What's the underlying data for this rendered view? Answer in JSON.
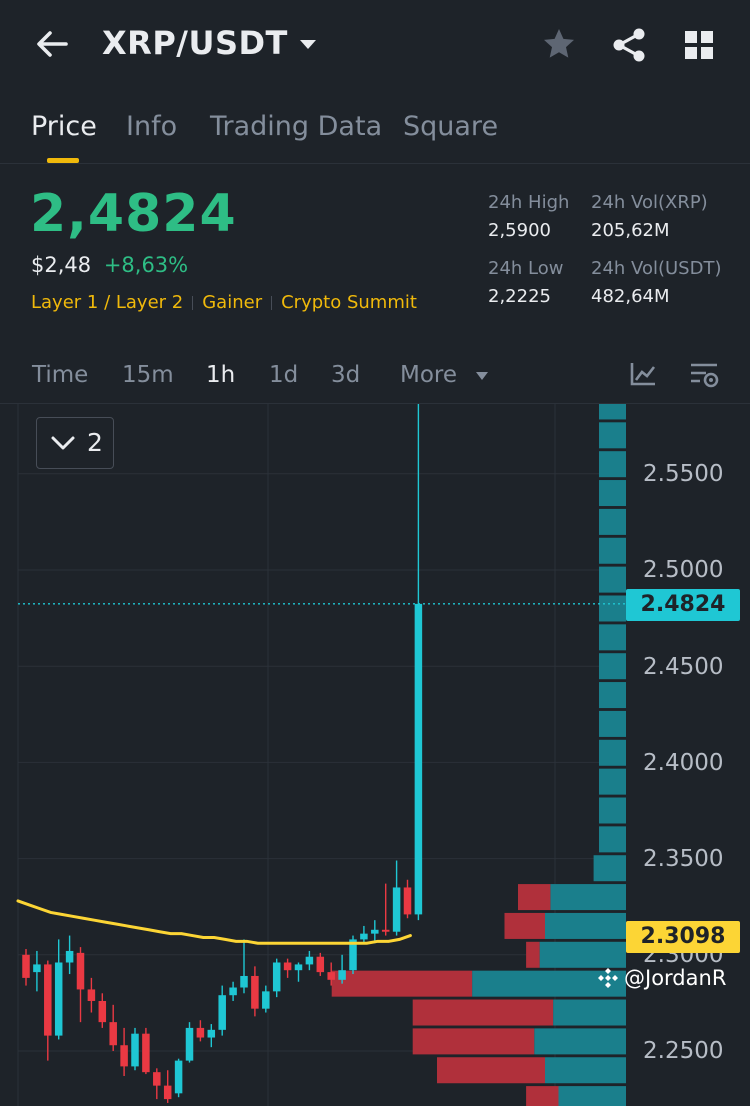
{
  "header": {
    "pair": "XRP/USDT"
  },
  "tabs": [
    {
      "label": "Price",
      "active": true
    },
    {
      "label": "Info"
    },
    {
      "label": "Trading Data"
    },
    {
      "label": "Square"
    }
  ],
  "ticker": {
    "last_price": "2,4824",
    "usd_price": "$2,48",
    "change_pct": "+8,63%",
    "tags": [
      "Layer 1 / Layer 2",
      "Gainer",
      "Crypto Summit"
    ],
    "stats": {
      "high_label": "24h High",
      "high_value": "2,5900",
      "vol_base_label": "24h Vol(XRP)",
      "vol_base_value": "205,62M",
      "low_label": "24h Low",
      "low_value": "2,2225",
      "vol_quote_label": "24h Vol(USDT)",
      "vol_quote_value": "482,64M"
    }
  },
  "intervals": [
    {
      "label": "Time"
    },
    {
      "label": "15m"
    },
    {
      "label": "1h",
      "active": true
    },
    {
      "label": "1d"
    },
    {
      "label": "3d"
    },
    {
      "label": "More"
    }
  ],
  "chart": {
    "indicator_count": "2",
    "y_axis_labels": [
      "2.5500",
      "2.5000",
      "2.4500",
      "2.4000",
      "2.3500",
      "2.3000",
      "2.2500"
    ],
    "last_price_tag": "2.4824",
    "ma_price_tag": "2.3098",
    "watermark": "@JordanR"
  },
  "colors": {
    "up": "#1fc7d4",
    "down": "#ea3943",
    "ma": "#fcd535",
    "accent": "#f0b90b",
    "price_green": "#2ebd85"
  },
  "chart_data": {
    "type": "candlestick",
    "timeframe": "1h",
    "ylim": [
      2.2225,
      2.59
    ],
    "last_price": 2.4824,
    "ma_value": 2.3098,
    "candles": [
      {
        "o": 2.3,
        "h": 2.303,
        "l": 2.284,
        "c": 2.288
      },
      {
        "o": 2.291,
        "h": 2.302,
        "l": 2.281,
        "c": 2.295
      },
      {
        "o": 2.295,
        "h": 2.297,
        "l": 2.245,
        "c": 2.258
      },
      {
        "o": 2.258,
        "h": 2.308,
        "l": 2.256,
        "c": 2.296
      },
      {
        "o": 2.296,
        "h": 2.31,
        "l": 2.29,
        "c": 2.302
      },
      {
        "o": 2.301,
        "h": 2.304,
        "l": 2.265,
        "c": 2.282
      },
      {
        "o": 2.282,
        "h": 2.288,
        "l": 2.27,
        "c": 2.276
      },
      {
        "o": 2.276,
        "h": 2.28,
        "l": 2.262,
        "c": 2.265
      },
      {
        "o": 2.265,
        "h": 2.274,
        "l": 2.25,
        "c": 2.253
      },
      {
        "o": 2.253,
        "h": 2.262,
        "l": 2.237,
        "c": 2.242
      },
      {
        "o": 2.242,
        "h": 2.262,
        "l": 2.24,
        "c": 2.259
      },
      {
        "o": 2.259,
        "h": 2.262,
        "l": 2.238,
        "c": 2.239
      },
      {
        "o": 2.239,
        "h": 2.241,
        "l": 2.225,
        "c": 2.232
      },
      {
        "o": 2.232,
        "h": 2.24,
        "l": 2.223,
        "c": 2.225
      },
      {
        "o": 2.228,
        "h": 2.246,
        "l": 2.226,
        "c": 2.245
      },
      {
        "o": 2.245,
        "h": 2.265,
        "l": 2.244,
        "c": 2.262
      },
      {
        "o": 2.262,
        "h": 2.266,
        "l": 2.255,
        "c": 2.257
      },
      {
        "o": 2.257,
        "h": 2.264,
        "l": 2.252,
        "c": 2.261
      },
      {
        "o": 2.261,
        "h": 2.284,
        "l": 2.258,
        "c": 2.279
      },
      {
        "o": 2.279,
        "h": 2.286,
        "l": 2.276,
        "c": 2.283
      },
      {
        "o": 2.283,
        "h": 2.308,
        "l": 2.28,
        "c": 2.289
      },
      {
        "o": 2.289,
        "h": 2.294,
        "l": 2.268,
        "c": 2.272
      },
      {
        "o": 2.272,
        "h": 2.284,
        "l": 2.27,
        "c": 2.281
      },
      {
        "o": 2.281,
        "h": 2.298,
        "l": 2.278,
        "c": 2.296
      },
      {
        "o": 2.296,
        "h": 2.298,
        "l": 2.288,
        "c": 2.292
      },
      {
        "o": 2.292,
        "h": 2.296,
        "l": 2.286,
        "c": 2.295
      },
      {
        "o": 2.295,
        "h": 2.302,
        "l": 2.292,
        "c": 2.299
      },
      {
        "o": 2.299,
        "h": 2.301,
        "l": 2.289,
        "c": 2.291
      },
      {
        "o": 2.291,
        "h": 2.296,
        "l": 2.284,
        "c": 2.287
      },
      {
        "o": 2.287,
        "h": 2.3,
        "l": 2.285,
        "c": 2.292
      },
      {
        "o": 2.292,
        "h": 2.31,
        "l": 2.29,
        "c": 2.308
      },
      {
        "o": 2.308,
        "h": 2.315,
        "l": 2.306,
        "c": 2.311
      },
      {
        "o": 2.311,
        "h": 2.318,
        "l": 2.306,
        "c": 2.313
      },
      {
        "o": 2.313,
        "h": 2.337,
        "l": 2.31,
        "c": 2.312
      },
      {
        "o": 2.312,
        "h": 2.349,
        "l": 2.31,
        "c": 2.335
      },
      {
        "o": 2.335,
        "h": 2.339,
        "l": 2.319,
        "c": 2.321
      },
      {
        "o": 2.321,
        "h": 2.59,
        "l": 2.318,
        "c": 2.4824
      }
    ],
    "ma_line": [
      2.328,
      2.326,
      2.324,
      2.322,
      2.321,
      2.32,
      2.319,
      2.318,
      2.317,
      2.316,
      2.315,
      2.314,
      2.313,
      2.312,
      2.311,
      2.311,
      2.31,
      2.309,
      2.309,
      2.308,
      2.307,
      2.307,
      2.306,
      2.306,
      2.306,
      2.306,
      2.306,
      2.306,
      2.306,
      2.306,
      2.306,
      2.306,
      2.306,
      2.307,
      2.307,
      2.308,
      2.31
    ],
    "depth_bars": [
      {
        "price": 2.585,
        "bid": 0,
        "ask": 0.1
      },
      {
        "price": 2.57,
        "bid": 0,
        "ask": 0.1
      },
      {
        "price": 2.555,
        "bid": 0,
        "ask": 0.1
      },
      {
        "price": 2.54,
        "bid": 0,
        "ask": 0.1
      },
      {
        "price": 2.525,
        "bid": 0,
        "ask": 0.1
      },
      {
        "price": 2.51,
        "bid": 0,
        "ask": 0.1
      },
      {
        "price": 2.495,
        "bid": 0,
        "ask": 0.1
      },
      {
        "price": 2.48,
        "bid": 0,
        "ask": 0.1
      },
      {
        "price": 2.465,
        "bid": 0,
        "ask": 0.1
      },
      {
        "price": 2.45,
        "bid": 0,
        "ask": 0.1
      },
      {
        "price": 2.435,
        "bid": 0,
        "ask": 0.1
      },
      {
        "price": 2.42,
        "bid": 0,
        "ask": 0.1
      },
      {
        "price": 2.405,
        "bid": 0,
        "ask": 0.1
      },
      {
        "price": 2.39,
        "bid": 0,
        "ask": 0.1
      },
      {
        "price": 2.375,
        "bid": 0,
        "ask": 0.1
      },
      {
        "price": 2.36,
        "bid": 0,
        "ask": 0.1
      },
      {
        "price": 2.345,
        "bid": 0,
        "ask": 0.12
      },
      {
        "price": 2.33,
        "bid": 0.12,
        "ask": 0.28
      },
      {
        "price": 2.315,
        "bid": 0.15,
        "ask": 0.3
      },
      {
        "price": 2.3,
        "bid": 0.05,
        "ask": 0.32
      },
      {
        "price": 2.285,
        "bid": 0.52,
        "ask": 0.57
      },
      {
        "price": 2.27,
        "bid": 0.52,
        "ask": 0.27
      },
      {
        "price": 2.255,
        "bid": 0.45,
        "ask": 0.34
      },
      {
        "price": 2.24,
        "bid": 0.4,
        "ask": 0.3
      },
      {
        "price": 2.225,
        "bid": 0.12,
        "ask": 0.25
      }
    ]
  }
}
